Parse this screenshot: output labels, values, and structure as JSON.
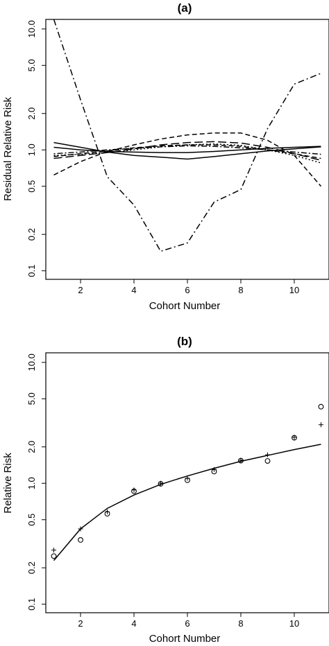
{
  "chart_data": [
    {
      "type": "line",
      "title": "(a)",
      "xlabel": "Cohort Number",
      "ylabel": "Residual Relative Risk",
      "yscale": "log",
      "xlim": [
        0.7,
        11.3
      ],
      "ylim": [
        0.085,
        12
      ],
      "x_ticks": [
        2,
        4,
        6,
        8,
        10
      ],
      "x_tick_labels": [
        "2",
        "4",
        "6",
        "8",
        "10"
      ],
      "y_ticks": [
        0.1,
        0.2,
        0.5,
        1.0,
        2.0,
        5.0,
        10.0
      ],
      "y_tick_labels": [
        "0.1",
        "0.2",
        "0.5",
        "1.0",
        "2.0",
        "5.0",
        "10.0"
      ],
      "x": [
        1,
        2,
        3,
        4,
        5,
        6,
        7,
        8,
        9,
        10,
        11
      ],
      "series": [
        {
          "style": "dashdot",
          "values": [
            12.0,
            2.6,
            0.6,
            0.35,
            0.145,
            0.17,
            0.37,
            0.47,
            1.5,
            3.5,
            4.3
          ]
        },
        {
          "style": "dashed",
          "values": [
            0.62,
            0.8,
            0.97,
            1.1,
            1.23,
            1.33,
            1.38,
            1.38,
            1.2,
            0.9,
            0.5
          ]
        },
        {
          "style": "solid",
          "values": [
            1.15,
            1.05,
            0.96,
            0.9,
            0.87,
            0.84,
            0.88,
            0.93,
            0.98,
            1.02,
            1.06
          ]
        },
        {
          "style": "solid",
          "values": [
            1.05,
            1.0,
            0.97,
            0.96,
            0.95,
            0.95,
            0.97,
            1.0,
            1.03,
            1.05,
            1.07
          ]
        },
        {
          "style": "longdash",
          "values": [
            0.85,
            0.9,
            0.95,
            1.02,
            1.1,
            1.15,
            1.17,
            1.14,
            1.05,
            0.93,
            0.82
          ]
        },
        {
          "style": "dotted",
          "values": [
            0.9,
            0.92,
            0.95,
            1.0,
            1.06,
            1.1,
            1.12,
            1.09,
            1.0,
            0.9,
            0.78
          ]
        },
        {
          "style": "dashed",
          "values": [
            0.88,
            0.93,
            0.98,
            1.04,
            1.08,
            1.1,
            1.1,
            1.07,
            1.0,
            0.93,
            0.85
          ]
        },
        {
          "style": "dotdash",
          "values": [
            0.93,
            0.96,
            1.0,
            1.03,
            1.06,
            1.08,
            1.07,
            1.04,
            1.0,
            0.96,
            0.92
          ]
        }
      ]
    },
    {
      "type": "scatter",
      "title": "(b)",
      "xlabel": "Cohort Number",
      "ylabel": "Relative Risk",
      "yscale": "log",
      "xlim": [
        0.7,
        11.3
      ],
      "ylim": [
        0.085,
        12
      ],
      "x_ticks": [
        2,
        4,
        6,
        8,
        10
      ],
      "x_tick_labels": [
        "2",
        "4",
        "6",
        "8",
        "10"
      ],
      "y_ticks": [
        0.1,
        0.2,
        0.5,
        1.0,
        2.0,
        5.0,
        10.0
      ],
      "y_tick_labels": [
        "0.1",
        "0.2",
        "0.5",
        "1.0",
        "2.0",
        "5.0",
        "10.0"
      ],
      "x": [
        1,
        2,
        3,
        4,
        5,
        6,
        7,
        8,
        9,
        10,
        11
      ],
      "series": [
        {
          "marker": "line",
          "values": [
            0.23,
            0.42,
            0.62,
            0.8,
            0.98,
            1.15,
            1.33,
            1.52,
            1.7,
            1.9,
            2.1
          ]
        },
        {
          "marker": "circle",
          "values": [
            0.25,
            0.34,
            0.56,
            0.86,
            0.99,
            1.06,
            1.25,
            1.54,
            1.53,
            2.38,
            4.3
          ]
        },
        {
          "marker": "plus",
          "values": [
            0.28,
            0.42,
            0.58,
            0.88,
            1.0,
            1.1,
            1.3,
            1.55,
            1.72,
            2.4,
            3.05
          ]
        }
      ]
    }
  ]
}
